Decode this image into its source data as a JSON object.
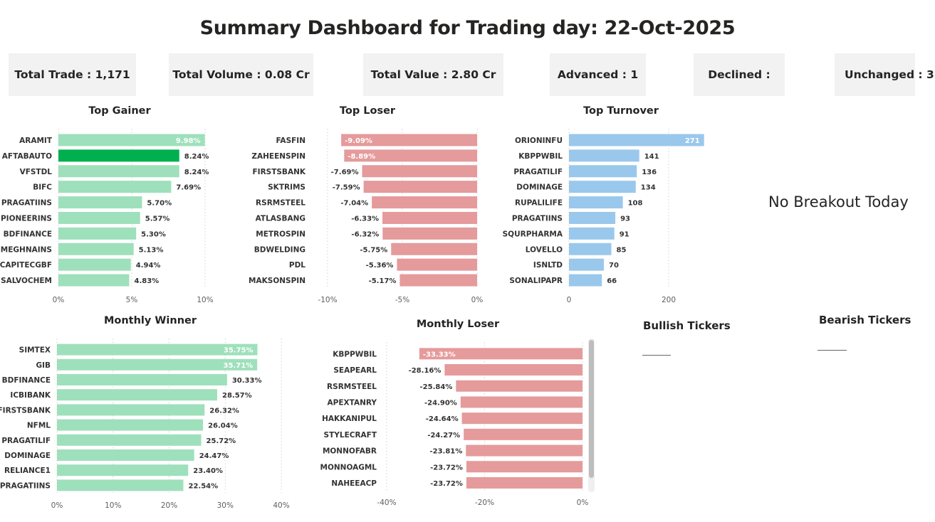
{
  "title": "Summary Dashboard for Trading day: 22-Oct-2025",
  "kpis": {
    "total_trade": "Total Trade : 1,171",
    "total_volume": "Total Volume : 0.08 Cr",
    "total_value": "Total Value : 2.80 Cr",
    "advanced": "Advanced : 1",
    "declined": "Declined :",
    "unchanged": "Unchanged : 3"
  },
  "breakout": {
    "message": "No Breakout Today"
  },
  "bullish": {
    "title": "Bullish Tickers"
  },
  "bearish": {
    "title": "Bearish Tickers"
  },
  "colors": {
    "gain_bar": "#9ee0bb",
    "gain_highlight": "#00b04f",
    "loss_bar": "#e59a9b",
    "turnover_bar": "#9ac8ec",
    "grid": "#d0d0d0"
  },
  "chart_data": [
    {
      "id": "top-gainer",
      "type": "bar",
      "orientation": "horizontal",
      "title": "Top Gainer",
      "categories": [
        "ARAMIT",
        "AFTABAUTO",
        "VFSTDL",
        "BIFC",
        "PRAGATIINS",
        "PIONEERINS",
        "BDFINANCE",
        "MEGHNAINS",
        "CAPITECGBF",
        "SALVOCHEM"
      ],
      "values": [
        9.98,
        8.24,
        8.24,
        7.69,
        5.7,
        5.57,
        5.3,
        5.13,
        4.94,
        4.83
      ],
      "labels": [
        "9.98%",
        "8.24%",
        "8.24%",
        "7.69%",
        "5.70%",
        "5.57%",
        "5.30%",
        "5.13%",
        "4.94%",
        "4.83%"
      ],
      "highlight_index": 1,
      "xlim": [
        0,
        10
      ],
      "ticks": [
        0,
        5,
        10
      ],
      "tick_labels": [
        "0%",
        "5%",
        "10%"
      ],
      "grid": true
    },
    {
      "id": "top-loser",
      "type": "bar",
      "orientation": "horizontal",
      "title": "Top Loser",
      "categories": [
        "FASFIN",
        "ZAHEENSPIN",
        "FIRSTSBANK",
        "SKTRIMS",
        "RSRMSTEEL",
        "ATLASBANG",
        "METROSPIN",
        "BDWELDING",
        "PDL",
        "MAKSONSPIN"
      ],
      "values": [
        -9.09,
        -8.89,
        -7.69,
        -7.59,
        -7.04,
        -6.33,
        -6.32,
        -5.75,
        -5.36,
        -5.17
      ],
      "labels": [
        "-9.09%",
        "-8.89%",
        "-7.69%",
        "-7.59%",
        "-7.04%",
        "-6.33%",
        "-6.32%",
        "-5.75%",
        "-5.36%",
        "-5.17%"
      ],
      "xlim": [
        -10,
        0
      ],
      "ticks": [
        -10,
        -5,
        0
      ],
      "tick_labels": [
        "-10%",
        "-5%",
        "0%"
      ],
      "grid": true
    },
    {
      "id": "top-turnover",
      "type": "bar",
      "orientation": "horizontal",
      "title": "Top Turnover",
      "categories": [
        "ORIONINFU",
        "KBPPWBIL",
        "PRAGATILIF",
        "DOMINAGE",
        "RUPALILIFE",
        "PRAGATIINS",
        "SQURPHARMA",
        "LOVELLO",
        "ISNLTD",
        "SONALIPAPR"
      ],
      "values": [
        271,
        141,
        136,
        134,
        108,
        93,
        91,
        85,
        70,
        66
      ],
      "labels": [
        "271",
        "141",
        "136",
        "134",
        "108",
        "93",
        "91",
        "85",
        "70",
        "66"
      ],
      "xlim": [
        0,
        300
      ],
      "ticks": [
        0,
        200
      ],
      "tick_labels": [
        "0",
        "200"
      ],
      "grid": true
    },
    {
      "id": "monthly-winner",
      "type": "bar",
      "orientation": "horizontal",
      "title": "Monthly Winner",
      "categories": [
        "SIMTEX",
        "GIB",
        "BDFINANCE",
        "ICBIBANK",
        "FIRSTSBANK",
        "NFML",
        "PRAGATILIF",
        "DOMINAGE",
        "RELIANCE1",
        "PRAGATIINS"
      ],
      "values": [
        35.75,
        35.71,
        30.33,
        28.57,
        26.32,
        26.04,
        25.72,
        24.47,
        23.4,
        22.54
      ],
      "labels": [
        "35.75%",
        "35.71%",
        "30.33%",
        "28.57%",
        "26.32%",
        "26.04%",
        "25.72%",
        "24.47%",
        "23.40%",
        "22.54%"
      ],
      "xlim": [
        0,
        40
      ],
      "ticks": [
        0,
        10,
        20,
        30,
        40
      ],
      "tick_labels": [
        "0%",
        "10%",
        "20%",
        "30%",
        "40%"
      ],
      "grid": true
    },
    {
      "id": "monthly-loser",
      "type": "bar",
      "orientation": "horizontal",
      "title": "Monthly Loser",
      "categories": [
        "KBPPWBIL",
        "SEAPEARL",
        "RSRMSTEEL",
        "APEXTANRY",
        "HAKKANIPUL",
        "STYLECRAFT",
        "MONNOFABR",
        "MONNOAGML",
        "NAHEEACP"
      ],
      "values": [
        -33.33,
        -28.16,
        -25.84,
        -24.9,
        -24.64,
        -24.27,
        -23.81,
        -23.72,
        -23.72
      ],
      "labels": [
        "-33.33%",
        "-28.16%",
        "-25.84%",
        "-24.90%",
        "-24.64%",
        "-24.27%",
        "-23.81%",
        "-23.72%",
        "-23.72%"
      ],
      "xlim": [
        -40,
        0
      ],
      "ticks": [
        -40,
        -20,
        0
      ],
      "tick_labels": [
        "-40%",
        "-20%",
        "0%"
      ],
      "grid": true
    }
  ]
}
